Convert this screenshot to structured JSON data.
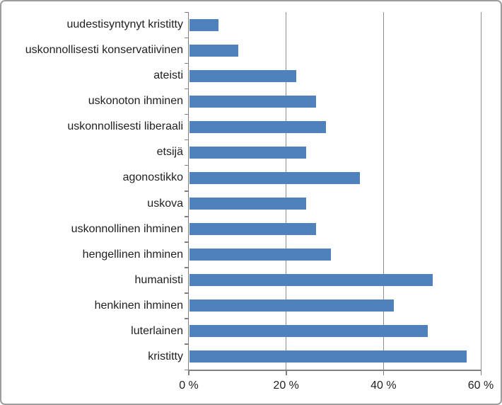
{
  "chart_data": {
    "type": "bar",
    "orientation": "horizontal",
    "title": "",
    "xlabel": "",
    "ylabel": "",
    "unit": "%",
    "xlim": [
      0,
      60
    ],
    "grid": true,
    "legend": false,
    "categories": [
      "uudestisyntynyt kristitty",
      "uskonnollisesti konservatiivinen",
      "ateisti",
      "uskonoton ihminen",
      "uskonnollisesti liberaali",
      "etsijä",
      "agonostikko",
      "uskova",
      "uskonnollinen ihminen",
      "hengellinen ihminen",
      "humanisti",
      "henkinen ihminen",
      "luterlainen",
      "kristitty"
    ],
    "values": [
      6,
      10,
      22,
      26,
      28,
      24,
      35,
      24,
      26,
      29,
      50,
      42,
      49,
      57
    ],
    "x_ticks": [
      {
        "value": 0,
        "label": "0 %"
      },
      {
        "value": 20,
        "label": "20 %"
      },
      {
        "value": 40,
        "label": "40 %"
      },
      {
        "value": 60,
        "label": "60 %"
      }
    ],
    "colors": {
      "bar": "#4f81bd",
      "axis": "#808080",
      "grid": "#8f8f8f",
      "frame": "#9d9d9d",
      "text": "#1f1f1f",
      "background": "#ffffff"
    }
  }
}
